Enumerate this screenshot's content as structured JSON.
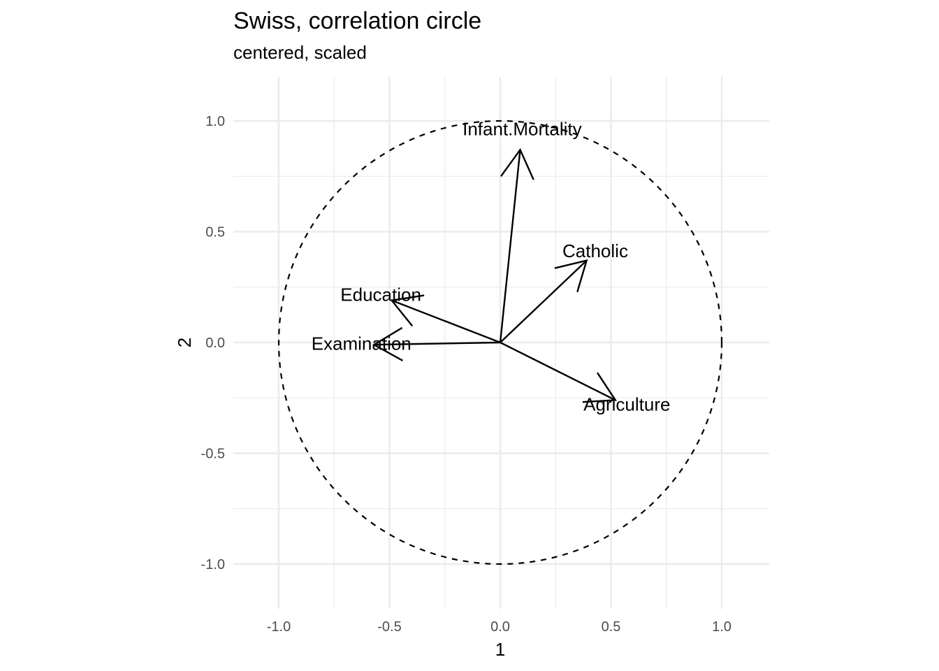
{
  "chart_data": {
    "type": "scatter",
    "title": "Swiss, correlation circle",
    "subtitle": "centered, scaled",
    "xlabel": "1",
    "ylabel": "2",
    "xlim": [
      -1.2,
      1.2
    ],
    "ylim": [
      -1.2,
      1.2
    ],
    "x_ticks": [
      -1.0,
      -0.5,
      0.0,
      0.5,
      1.0
    ],
    "x_tick_labels": [
      "-1.0",
      "-0.5",
      "0.0",
      "0.5",
      "1.0"
    ],
    "y_ticks": [
      -1.0,
      -0.5,
      0.0,
      0.5,
      1.0
    ],
    "y_tick_labels": [
      "-1.0",
      "-0.5",
      "0.0",
      "0.5",
      "1.0"
    ],
    "grid": true,
    "unit_circle": {
      "radius": 1.0,
      "style": "dashed"
    },
    "vectors": [
      {
        "name": "Agriculture",
        "x": 0.52,
        "y": -0.26
      },
      {
        "name": "Examination",
        "x": -0.57,
        "y": -0.01
      },
      {
        "name": "Education",
        "x": -0.49,
        "y": 0.19
      },
      {
        "name": "Catholic",
        "x": 0.39,
        "y": 0.37
      },
      {
        "name": "Infant.Mortality",
        "x": 0.09,
        "y": 0.87
      }
    ]
  }
}
